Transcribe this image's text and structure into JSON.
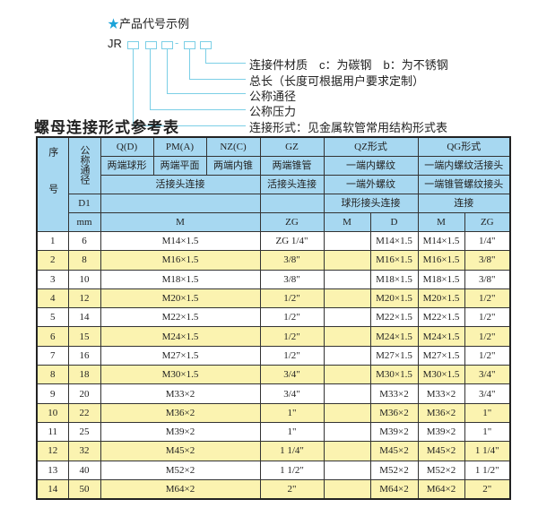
{
  "example": {
    "title": "产品代号示例",
    "prefix": "JR",
    "dash": "-",
    "labels": [
      "连接件材质　c：为碳钢　b：为不锈钢",
      "总长（长度可根据用户要求定制）",
      "公称通径",
      "公称压力",
      "连接形式：见金属软管常用结构形式表"
    ]
  },
  "table_title": "螺母连接形式参考表",
  "header": {
    "seq": "序号",
    "dn": "公称通径",
    "q": "Q(D)",
    "pm": "PM(A)",
    "nz": "NZ(C)",
    "gz": "GZ",
    "qz": "QZ形式",
    "qg": "QG形式",
    "q2": "两端球形",
    "pm2": "两端平面",
    "nz2": "两端内锥",
    "gz2": "两端锥管",
    "qz2": "一端内螺纹",
    "qg2": "一端内螺纹活接头",
    "union": "活接头连接",
    "gz3": "活接头连接",
    "qz3": "一端外螺纹",
    "qg3": "一端锥管螺纹接头",
    "d1": "D1",
    "qz4": "球形接头连接",
    "qg4": "连接",
    "mm": "mm",
    "m": "M",
    "zg": "ZG",
    "qzm": "M",
    "qzd": "D",
    "qgm": "M",
    "qgzg": "ZG"
  },
  "rows": [
    [
      "1",
      "6",
      "M14×1.5",
      "ZG 1/4\"",
      "",
      "M14×1.5",
      "M14×1.5",
      "1/4\""
    ],
    [
      "2",
      "8",
      "M16×1.5",
      "3/8\"",
      "",
      "M16×1.5",
      "M16×1.5",
      "3/8\""
    ],
    [
      "3",
      "10",
      "M18×1.5",
      "3/8\"",
      "",
      "M18×1.5",
      "M18×1.5",
      "3/8\""
    ],
    [
      "4",
      "12",
      "M20×1.5",
      "1/2\"",
      "",
      "M20×1.5",
      "M20×1.5",
      "1/2\""
    ],
    [
      "5",
      "14",
      "M22×1.5",
      "1/2\"",
      "",
      "M22×1.5",
      "M22×1.5",
      "1/2\""
    ],
    [
      "6",
      "15",
      "M24×1.5",
      "1/2\"",
      "",
      "M24×1.5",
      "M24×1.5",
      "1/2\""
    ],
    [
      "7",
      "16",
      "M27×1.5",
      "1/2\"",
      "",
      "M27×1.5",
      "M27×1.5",
      "1/2\""
    ],
    [
      "8",
      "18",
      "M30×1.5",
      "3/4\"",
      "",
      "M30×1.5",
      "M30×1.5",
      "3/4\""
    ],
    [
      "9",
      "20",
      "M33×2",
      "3/4\"",
      "",
      "M33×2",
      "M33×2",
      "3/4\""
    ],
    [
      "10",
      "22",
      "M36×2",
      "1\"",
      "",
      "M36×2",
      "M36×2",
      "1\""
    ],
    [
      "11",
      "25",
      "M39×2",
      "1\"",
      "",
      "M39×2",
      "M39×2",
      "1\""
    ],
    [
      "12",
      "32",
      "M45×2",
      "1 1/4\"",
      "",
      "M45×2",
      "M45×2",
      "1 1/4\""
    ],
    [
      "13",
      "40",
      "M52×2",
      "1 1/2\"",
      "",
      "M52×2",
      "M52×2",
      "1 1/2\""
    ],
    [
      "14",
      "50",
      "M64×2",
      "2\"",
      "",
      "M64×2",
      "M64×2",
      "2\""
    ]
  ]
}
